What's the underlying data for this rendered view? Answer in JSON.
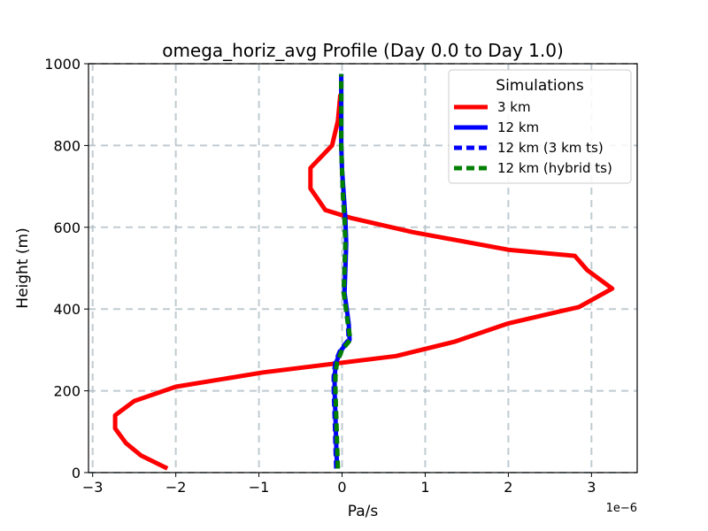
{
  "chart_data": {
    "type": "line",
    "orientation": "vertical-profile",
    "title": "omega_horiz_avg Profile (Day 0.0 to Day 1.0)",
    "xlabel": "Pa/s",
    "ylabel": "Height (m)",
    "x_multiplier_label": "1e−6",
    "xlim": [
      -3.05,
      3.55
    ],
    "ylim": [
      0,
      1000
    ],
    "xticks": [
      -3,
      -2,
      -1,
      0,
      1,
      2,
      3
    ],
    "xtick_labels": [
      "−3",
      "−2",
      "−1",
      "0",
      "1",
      "2",
      "3"
    ],
    "yticks": [
      0,
      200,
      400,
      600,
      800,
      1000
    ],
    "ytick_labels": [
      "0",
      "200",
      "400",
      "600",
      "800",
      "1000"
    ],
    "grid": true,
    "legend": {
      "title": "Simulations",
      "placement": "top-right"
    },
    "series": [
      {
        "name": "3 km",
        "color": "#ff0000",
        "style": "solid",
        "x": [
          -2.1,
          -2.42,
          -2.6,
          -2.73,
          -2.73,
          -2.5,
          -2.0,
          -0.95,
          0.65,
          1.35,
          2.0,
          2.85,
          3.25,
          2.95,
          2.8,
          2.0,
          0.85,
          0.12,
          -0.2,
          -0.38,
          -0.38,
          -0.12,
          -0.05,
          -0.02
        ],
        "y": [
          10,
          42,
          72,
          108,
          140,
          175,
          210,
          245,
          285,
          320,
          365,
          405,
          450,
          495,
          530,
          545,
          588,
          622,
          642,
          695,
          745,
          800,
          860,
          925
        ]
      },
      {
        "name": "12 km",
        "color": "#0000ff",
        "style": "solid",
        "x": [
          -0.06,
          -0.07,
          -0.08,
          -0.09,
          -0.09,
          -0.08,
          -0.07,
          -0.01,
          0.09,
          0.08,
          0.03,
          0.04,
          0.05,
          0.04,
          0.02,
          0.0,
          -0.01,
          -0.01,
          -0.01,
          -0.01
        ],
        "y": [
          10,
          70,
          140,
          200,
          235,
          255,
          270,
          300,
          325,
          365,
          440,
          500,
          560,
          620,
          680,
          740,
          800,
          860,
          920,
          975
        ]
      },
      {
        "name": "12 km (3 km ts)",
        "color": "#0000ff",
        "style": "dashed",
        "x": [
          -0.07,
          -0.08,
          -0.09,
          -0.1,
          -0.1,
          -0.09,
          -0.08,
          -0.02,
          0.08,
          0.07,
          0.02,
          0.03,
          0.04,
          0.03,
          0.01,
          0.0,
          -0.01,
          -0.01,
          -0.01,
          -0.01
        ],
        "y": [
          10,
          70,
          140,
          200,
          235,
          255,
          270,
          300,
          325,
          365,
          440,
          500,
          560,
          620,
          680,
          740,
          800,
          860,
          920,
          975
        ]
      },
      {
        "name": "12 km (hybrid ts)",
        "color": "#008000",
        "style": "dashed",
        "x": [
          -0.05,
          -0.06,
          -0.07,
          -0.08,
          -0.08,
          -0.07,
          -0.06,
          -0.0,
          0.1,
          0.07,
          0.02,
          0.03,
          0.04,
          0.03,
          0.01,
          0.0,
          -0.01,
          -0.01,
          -0.01,
          -0.01
        ],
        "y": [
          10,
          70,
          140,
          200,
          235,
          255,
          270,
          300,
          325,
          365,
          440,
          500,
          560,
          620,
          680,
          740,
          800,
          860,
          920,
          975
        ]
      }
    ]
  }
}
